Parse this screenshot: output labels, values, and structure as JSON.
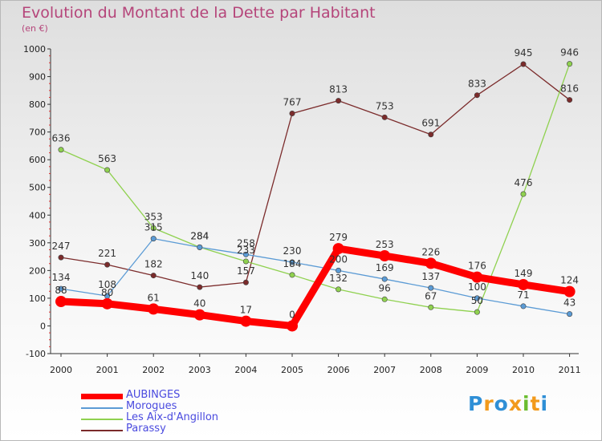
{
  "title": "Evolution du Montant de la Dette par Habitant",
  "subtitle": "(en €)",
  "logo": "Proxiti",
  "chart_data": {
    "type": "line",
    "x": [
      "2000",
      "2001",
      "2002",
      "2003",
      "2004",
      "2005",
      "2006",
      "2007",
      "2008",
      "2009",
      "2010",
      "2011"
    ],
    "ylim": [
      -100,
      1000
    ],
    "yticks": [
      "-100",
      "0",
      "100",
      "200",
      "300",
      "400",
      "500",
      "600",
      "700",
      "800",
      "900",
      "1000"
    ],
    "grid": false,
    "legend_position": "bottom-left",
    "series": [
      {
        "name": "AUBINGES",
        "color": "#ff0000",
        "values": [
          88,
          80,
          61,
          40,
          17,
          0,
          279,
          253,
          226,
          176,
          149,
          124
        ]
      },
      {
        "name": "Morogues",
        "color": "#5b9bd5",
        "values": [
          134,
          108,
          315,
          284,
          258,
          230,
          200,
          169,
          137,
          100,
          71,
          43
        ]
      },
      {
        "name": "Les Aix-d'Angillon",
        "color": "#8fd14f",
        "values": [
          636,
          563,
          353,
          284,
          233,
          184,
          132,
          96,
          67,
          50,
          476,
          946
        ]
      },
      {
        "name": "Parassy",
        "color": "#7b2b2b",
        "values": [
          247,
          221,
          182,
          140,
          157,
          767,
          813,
          753,
          691,
          833,
          945,
          816
        ]
      }
    ]
  }
}
